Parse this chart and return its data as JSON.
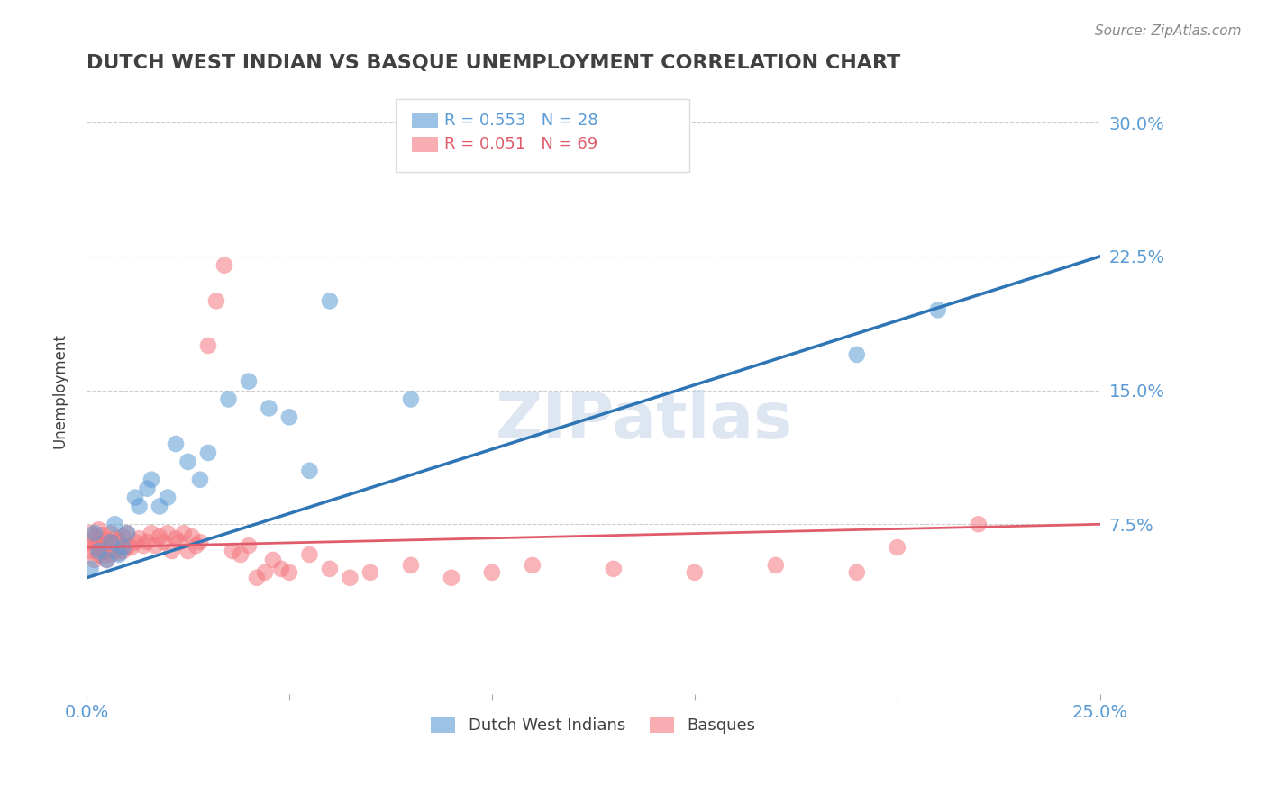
{
  "title": "DUTCH WEST INDIAN VS BASQUE UNEMPLOYMENT CORRELATION CHART",
  "source_text": "Source: ZipAtlas.com",
  "xlabel": "",
  "ylabel": "Unemployment",
  "xlim": [
    0.0,
    0.25
  ],
  "ylim": [
    -0.02,
    0.32
  ],
  "yticks": [
    0.075,
    0.15,
    0.225,
    0.3
  ],
  "ytick_labels": [
    "7.5%",
    "15.0%",
    "22.5%",
    "30.0%"
  ],
  "xticks": [
    0.0,
    0.05,
    0.1,
    0.15,
    0.2,
    0.25
  ],
  "xtick_labels": [
    "0.0%",
    "",
    "",
    "",
    "",
    "25.0%"
  ],
  "grid_color": "#cccccc",
  "background_color": "#ffffff",
  "blue_color": "#5b9bd5",
  "pink_color": "#f4777f",
  "blue_line_color": "#2e75b6",
  "pink_line_color": "#e05c6b",
  "watermark": "ZIPatlas",
  "legend_R_blue": "0.553",
  "legend_N_blue": "28",
  "legend_R_pink": "0.051",
  "legend_N_pink": "69",
  "legend_label_blue": "Dutch West Indians",
  "legend_label_pink": "Basques",
  "title_color": "#404040",
  "axis_label_color": "#404040",
  "tick_color": "#5b9bd5",
  "blue_scatter": {
    "x": [
      0.001,
      0.003,
      0.002,
      0.005,
      0.006,
      0.007,
      0.008,
      0.009,
      0.01,
      0.012,
      0.013,
      0.015,
      0.016,
      0.018,
      0.02,
      0.022,
      0.025,
      0.028,
      0.03,
      0.035,
      0.04,
      0.045,
      0.05,
      0.055,
      0.06,
      0.08,
      0.19,
      0.21
    ],
    "y": [
      0.05,
      0.06,
      0.07,
      0.055,
      0.065,
      0.075,
      0.058,
      0.062,
      0.07,
      0.09,
      0.085,
      0.095,
      0.1,
      0.085,
      0.09,
      0.12,
      0.11,
      0.1,
      0.115,
      0.145,
      0.155,
      0.14,
      0.135,
      0.105,
      0.2,
      0.145,
      0.17,
      0.195
    ]
  },
  "pink_scatter": {
    "x": [
      0.001,
      0.001,
      0.001,
      0.002,
      0.002,
      0.002,
      0.003,
      0.003,
      0.003,
      0.004,
      0.004,
      0.004,
      0.005,
      0.005,
      0.005,
      0.006,
      0.006,
      0.006,
      0.007,
      0.007,
      0.008,
      0.008,
      0.009,
      0.009,
      0.01,
      0.01,
      0.011,
      0.012,
      0.013,
      0.014,
      0.015,
      0.016,
      0.017,
      0.018,
      0.019,
      0.02,
      0.021,
      0.022,
      0.023,
      0.024,
      0.025,
      0.026,
      0.027,
      0.028,
      0.03,
      0.032,
      0.034,
      0.036,
      0.038,
      0.04,
      0.042,
      0.044,
      0.046,
      0.048,
      0.05,
      0.055,
      0.06,
      0.065,
      0.07,
      0.08,
      0.09,
      0.1,
      0.11,
      0.13,
      0.15,
      0.17,
      0.19,
      0.2,
      0.22
    ],
    "y": [
      0.06,
      0.065,
      0.07,
      0.055,
      0.062,
      0.068,
      0.058,
      0.064,
      0.072,
      0.057,
      0.063,
      0.069,
      0.055,
      0.06,
      0.066,
      0.058,
      0.065,
      0.07,
      0.06,
      0.067,
      0.059,
      0.066,
      0.06,
      0.068,
      0.062,
      0.07,
      0.062,
      0.065,
      0.067,
      0.063,
      0.065,
      0.07,
      0.063,
      0.068,
      0.065,
      0.07,
      0.06,
      0.067,
      0.065,
      0.07,
      0.06,
      0.068,
      0.063,
      0.065,
      0.175,
      0.2,
      0.22,
      0.06,
      0.058,
      0.063,
      0.045,
      0.048,
      0.055,
      0.05,
      0.048,
      0.058,
      0.05,
      0.045,
      0.048,
      0.052,
      0.045,
      0.048,
      0.052,
      0.05,
      0.048,
      0.052,
      0.048,
      0.062,
      0.075
    ]
  },
  "blue_line": {
    "x0": 0.0,
    "y0": 0.045,
    "x1": 0.25,
    "y1": 0.225
  },
  "pink_line": {
    "x0": 0.0,
    "y0": 0.062,
    "x1": 0.25,
    "y1": 0.075
  }
}
